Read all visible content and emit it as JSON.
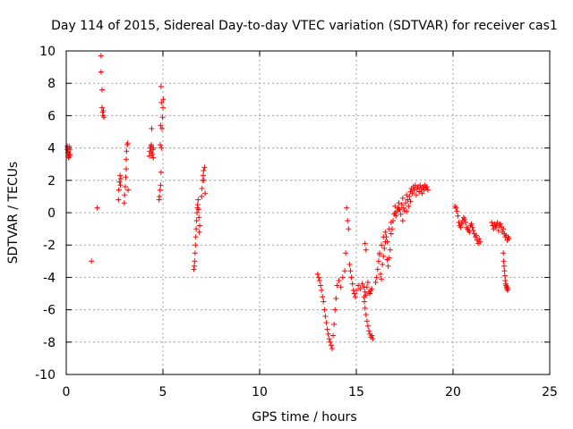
{
  "chart_data": {
    "type": "scatter",
    "title": "Day 114 of 2015, Sidereal Day-to-day VTEC variation (SDTVAR) for receiver cas1",
    "xlabel": "GPS time / hours",
    "ylabel": "SDTVAR / TECUs",
    "xlim": [
      0,
      25
    ],
    "ylim": [
      -10,
      10
    ],
    "xticks": [
      0,
      5,
      10,
      15,
      20,
      25
    ],
    "yticks": [
      -10,
      -8,
      -6,
      -4,
      -2,
      0,
      2,
      4,
      6,
      8,
      10
    ],
    "grid": true,
    "marker": "+",
    "color": "#ff0000",
    "series": [
      {
        "name": "cas1",
        "x": [
          0.05,
          0.05,
          0.07,
          0.08,
          0.1,
          0.1,
          0.12,
          0.14,
          0.15,
          0.16,
          0.18,
          0.2,
          1.3,
          1.6,
          1.8,
          1.8,
          1.85,
          1.85,
          1.88,
          1.9,
          1.92,
          1.95,
          2.7,
          2.72,
          2.75,
          2.78,
          2.8,
          2.82,
          3.0,
          3.02,
          3.05,
          3.08,
          3.1,
          3.1,
          3.12,
          3.15,
          3.18,
          3.2,
          4.3,
          4.32,
          4.35,
          4.38,
          4.4,
          4.4,
          4.42,
          4.45,
          4.48,
          4.5,
          4.5,
          4.8,
          4.82,
          4.85,
          4.88,
          4.9,
          4.92,
          4.95,
          4.98,
          5.0,
          5.02,
          4.9,
          4.92,
          4.88,
          4.86,
          6.6,
          6.62,
          6.64,
          6.66,
          6.68,
          6.7,
          6.72,
          6.74,
          6.76,
          6.78,
          6.8,
          6.82,
          6.84,
          6.86,
          6.88,
          6.9,
          7.0,
          7.02,
          7.05,
          7.08,
          7.1,
          7.12,
          7.15,
          7.18,
          13.0,
          13.05,
          13.1,
          13.15,
          13.2,
          13.25,
          13.3,
          13.35,
          13.4,
          13.45,
          13.5,
          13.55,
          13.6,
          13.65,
          13.7,
          13.75,
          13.8,
          13.85,
          13.9,
          13.95,
          14.0,
          14.1,
          14.2,
          14.3,
          14.4,
          14.45,
          14.5,
          14.55,
          14.6,
          14.65,
          14.7,
          14.75,
          14.8,
          14.85,
          14.9,
          14.95,
          15.0,
          15.1,
          15.2,
          15.3,
          15.4,
          15.45,
          15.5,
          15.55,
          15.6,
          15.65,
          15.7,
          15.75,
          15.8,
          15.5,
          15.45,
          15.4,
          15.42,
          15.45,
          15.5,
          15.55,
          15.6,
          15.65,
          15.7,
          15.75,
          15.8,
          15.85,
          16.0,
          16.05,
          16.1,
          16.15,
          16.2,
          16.25,
          16.3,
          16.35,
          16.4,
          16.45,
          16.5,
          16.55,
          16.6,
          16.65,
          16.7,
          16.75,
          16.8,
          16.85,
          16.9,
          16.95,
          17.0,
          17.05,
          17.1,
          17.15,
          17.2,
          17.25,
          17.3,
          17.35,
          17.4,
          17.45,
          17.5,
          17.55,
          17.6,
          17.65,
          17.7,
          17.75,
          17.8,
          17.85,
          17.9,
          17.95,
          18.0,
          18.05,
          18.1,
          18.15,
          18.2,
          18.25,
          18.3,
          18.35,
          18.4,
          18.45,
          18.5,
          18.55,
          18.6,
          18.65,
          18.7,
          16.2,
          16.3,
          16.4,
          16.5,
          16.6,
          16.7,
          16.8,
          17.0,
          17.2,
          17.4,
          17.6,
          17.8,
          20.1,
          20.15,
          20.2,
          20.25,
          20.3,
          20.35,
          20.4,
          20.45,
          20.5,
          20.55,
          20.6,
          20.65,
          20.7,
          20.75,
          20.8,
          20.85,
          20.9,
          20.95,
          21.0,
          21.05,
          21.1,
          21.15,
          21.2,
          21.25,
          21.3,
          21.35,
          21.4,
          22.0,
          22.05,
          22.1,
          22.15,
          22.2,
          22.25,
          22.3,
          22.35,
          22.4,
          22.45,
          22.5,
          22.55,
          22.6,
          22.65,
          22.7,
          22.75,
          22.8,
          22.85,
          22.9,
          22.6,
          22.62,
          22.64,
          22.66,
          22.68,
          22.7,
          22.72,
          22.74,
          22.76,
          22.78,
          22.8,
          22.82,
          22.85
        ],
        "y": [
          4.1,
          3.9,
          4.0,
          3.7,
          3.5,
          3.8,
          3.4,
          3.6,
          4.1,
          3.5,
          3.9,
          3.6,
          -3.0,
          0.3,
          9.7,
          8.7,
          7.6,
          6.5,
          6.2,
          6.0,
          6.3,
          5.9,
          0.8,
          1.4,
          1.9,
          2.3,
          1.7,
          2.1,
          0.6,
          1.1,
          1.6,
          2.2,
          2.7,
          3.3,
          3.8,
          4.2,
          4.3,
          1.4,
          3.5,
          3.8,
          4.0,
          4.1,
          3.7,
          4.2,
          5.2,
          3.6,
          3.9,
          4.0,
          3.4,
          0.8,
          1.0,
          1.4,
          1.7,
          2.5,
          4.0,
          5.2,
          5.9,
          6.5,
          7.0,
          7.8,
          6.8,
          5.4,
          4.2,
          -3.5,
          -3.3,
          -3.0,
          -2.5,
          -2.0,
          -1.5,
          -1.0,
          -0.5,
          0.0,
          0.3,
          0.5,
          0.8,
          0.2,
          -0.3,
          -1.2,
          -0.8,
          1.0,
          1.5,
          2.0,
          2.3,
          2.6,
          2.0,
          2.8,
          1.2,
          -3.8,
          -4.0,
          -4.2,
          -4.5,
          -4.8,
          -5.2,
          -5.5,
          -6.0,
          -6.4,
          -6.8,
          -7.2,
          -7.5,
          -7.8,
          -8.0,
          -8.2,
          -8.4,
          -7.6,
          -6.9,
          -6.0,
          -5.3,
          -4.5,
          -4.2,
          -4.6,
          -4.0,
          -3.6,
          -2.5,
          0.3,
          -0.5,
          -1.0,
          -3.2,
          -3.6,
          -4.0,
          -4.4,
          -4.8,
          -5.0,
          -5.2,
          -4.8,
          -4.5,
          -4.7,
          -4.4,
          -4.6,
          -4.9,
          -5.1,
          -4.6,
          -4.3,
          -4.9,
          -5.0,
          -4.8,
          -4.7,
          -2.3,
          -1.9,
          -5.2,
          -5.5,
          -5.9,
          -6.3,
          -6.7,
          -7.0,
          -7.3,
          -7.5,
          -7.7,
          -7.6,
          -7.8,
          -4.3,
          -4.0,
          -3.5,
          -3.0,
          -2.6,
          -3.8,
          -4.1,
          -3.2,
          -2.7,
          -2.2,
          -1.8,
          -1.5,
          -2.9,
          -3.3,
          -2.8,
          -2.3,
          -1.3,
          -1.0,
          -0.5,
          -0.1,
          0.4,
          -0.2,
          0.1,
          0.3,
          0.6,
          0.2,
          -0.1,
          0.5,
          0.9,
          0.3,
          0.1,
          0.6,
          1.1,
          0.8,
          0.4,
          1.0,
          1.3,
          1.5,
          1.2,
          1.6,
          1.4,
          1.7,
          1.1,
          1.5,
          1.6,
          1.3,
          1.7,
          1.5,
          1.2,
          1.6,
          1.4,
          1.7,
          1.5,
          1.6,
          1.4,
          -2.5,
          -2.0,
          -1.5,
          -1.2,
          -1.8,
          -1.0,
          -0.6,
          0.0,
          0.2,
          -0.5,
          0.1,
          0.7,
          0.4,
          0.3,
          0.1,
          -0.2,
          -0.6,
          -0.8,
          -0.9,
          -0.7,
          -0.5,
          -0.3,
          -0.4,
          -0.6,
          -0.9,
          -1.0,
          -1.1,
          -1.2,
          -0.8,
          -0.7,
          -0.9,
          -1.1,
          -1.3,
          -1.5,
          -1.4,
          -1.7,
          -1.9,
          -1.6,
          -1.8,
          -0.6,
          -0.8,
          -1.0,
          -0.7,
          -0.9,
          -0.8,
          -0.6,
          -1.1,
          -0.8,
          -0.7,
          -0.9,
          -1.2,
          -1.0,
          -1.3,
          -1.5,
          -1.4,
          -1.7,
          -1.5,
          -1.6,
          -2.5,
          -3.0,
          -3.3,
          -3.6,
          -3.9,
          -4.2,
          -4.4,
          -4.5,
          -4.6,
          -4.7,
          -4.6,
          -4.8,
          -4.7
        ]
      }
    ]
  }
}
